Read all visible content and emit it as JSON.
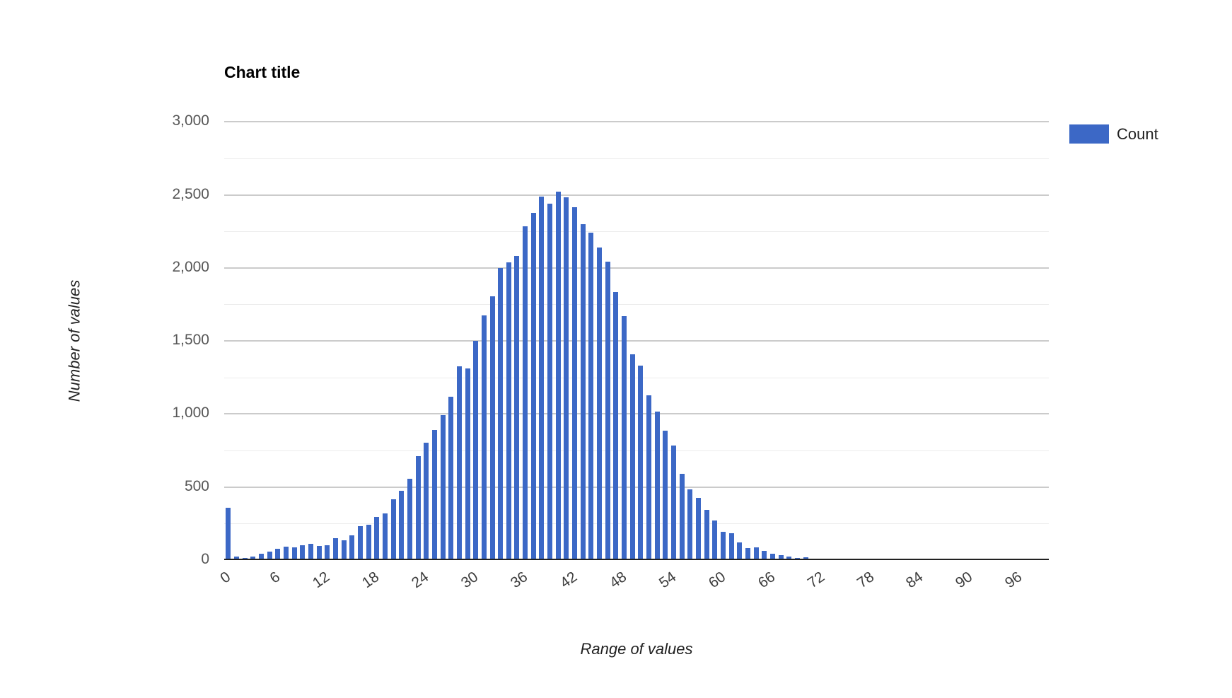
{
  "title": "Chart title",
  "legend": {
    "label": "Count",
    "position": "top-right"
  },
  "colors": {
    "bar": "#3C68C6",
    "background": "#ffffff",
    "major_gridline": "#cbcbcb",
    "minor_gridline": "#ececec",
    "axis_line": "#212121"
  },
  "chart_data": {
    "type": "bar",
    "subtype": "histogram",
    "title": "Chart title",
    "xlabel": "Range of values",
    "ylabel": "Number of values",
    "series_name": "Count",
    "bar_color": "#3C68C6",
    "ylim": [
      0,
      3000
    ],
    "xlim": [
      0,
      100
    ],
    "y_tick_interval": 500,
    "y_minor_gridline_interval": 250,
    "y_tick_labels": [
      "0",
      "500",
      "1,000",
      "1,500",
      "2,000",
      "2,500",
      "3,000"
    ],
    "x_tick_interval": 6,
    "x_tick_labels": [
      "0",
      "6",
      "12",
      "18",
      "24",
      "30",
      "36",
      "42",
      "48",
      "54",
      "60",
      "66",
      "72",
      "78",
      "84",
      "90",
      "96"
    ],
    "bucket_size": 1,
    "grid": true,
    "legend_position": "top-right",
    "x_start": 0,
    "values": [
      360,
      25,
      15,
      25,
      45,
      60,
      78,
      92,
      85,
      103,
      112,
      95,
      100,
      150,
      135,
      170,
      232,
      242,
      295,
      320,
      415,
      475,
      555,
      710,
      805,
      890,
      990,
      1120,
      1325,
      1310,
      1500,
      1675,
      1805,
      2000,
      2040,
      2080,
      2285,
      2375,
      2490,
      2440,
      2520,
      2485,
      2415,
      2300,
      2240,
      2140,
      2045,
      1835,
      1670,
      1410,
      1330,
      1130,
      1015,
      885,
      785,
      590,
      485,
      425,
      345,
      270,
      195,
      185,
      120,
      80,
      88,
      64,
      45,
      32,
      24,
      16,
      18,
      12,
      9,
      7,
      5,
      4,
      3,
      2
    ]
  }
}
